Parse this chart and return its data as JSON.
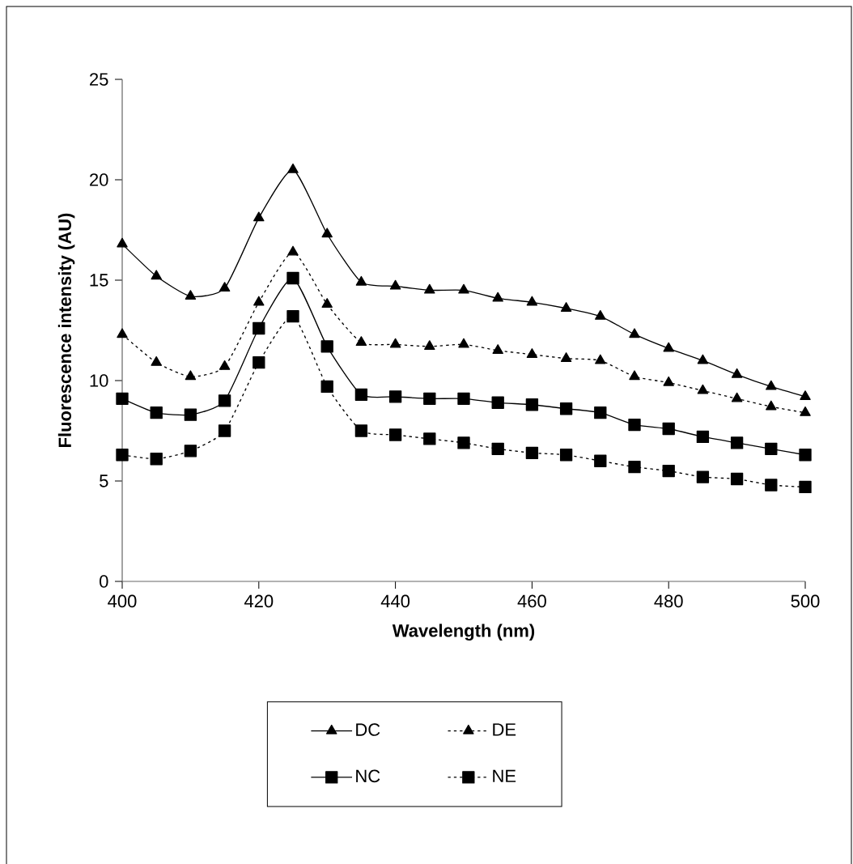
{
  "chart_data": {
    "type": "line",
    "xlabel": "Wavelength (nm)",
    "ylabel": "Fluorescence intensity (AU)",
    "x": [
      400,
      405,
      410,
      415,
      420,
      425,
      430,
      435,
      440,
      445,
      450,
      455,
      460,
      465,
      470,
      475,
      480,
      485,
      490,
      495,
      500
    ],
    "series": [
      {
        "name": "DC",
        "color": "#000000",
        "marker": "triangle",
        "line_style": "solid",
        "values": [
          16.8,
          15.2,
          14.2,
          14.6,
          18.1,
          20.5,
          17.3,
          14.9,
          14.7,
          14.5,
          14.5,
          14.1,
          13.9,
          13.6,
          13.2,
          12.3,
          11.6,
          11.0,
          10.3,
          9.7,
          9.2
        ]
      },
      {
        "name": "DE",
        "color": "#000000",
        "marker": "triangle",
        "line_style": "dotted",
        "values": [
          12.3,
          10.9,
          10.2,
          10.7,
          13.9,
          16.4,
          13.8,
          11.9,
          11.8,
          11.7,
          11.8,
          11.5,
          11.3,
          11.1,
          11.0,
          10.2,
          9.9,
          9.5,
          9.1,
          8.7,
          8.4
        ]
      },
      {
        "name": "NC",
        "color": "#000000",
        "marker": "square",
        "line_style": "solid",
        "values": [
          9.1,
          8.4,
          8.3,
          9.0,
          12.6,
          15.1,
          11.7,
          9.3,
          9.2,
          9.1,
          9.1,
          8.9,
          8.8,
          8.6,
          8.4,
          7.8,
          7.6,
          7.2,
          6.9,
          6.6,
          6.3
        ]
      },
      {
        "name": "NE",
        "color": "#000000",
        "marker": "square",
        "line_style": "dotted",
        "values": [
          6.3,
          6.1,
          6.5,
          7.5,
          10.9,
          13.2,
          9.7,
          7.5,
          7.3,
          7.1,
          6.9,
          6.6,
          6.4,
          6.3,
          6.0,
          5.7,
          5.5,
          5.2,
          5.1,
          4.8,
          4.7
        ]
      }
    ],
    "xlim": [
      400,
      500
    ],
    "xticks": [
      400,
      420,
      440,
      460,
      480,
      500
    ],
    "ylim": [
      0,
      25
    ],
    "yticks": [
      0,
      5,
      10,
      15,
      20,
      25
    ],
    "grid": false,
    "legend": "bottom"
  }
}
